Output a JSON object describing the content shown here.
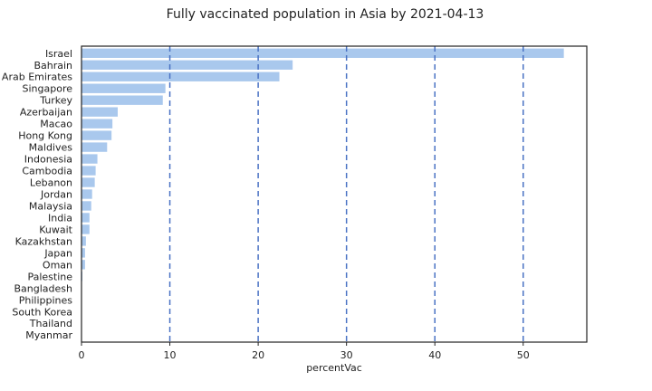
{
  "chart_data": {
    "type": "bar",
    "orientation": "horizontal",
    "title": "Fully vaccinated population in Asia by 2021-04-13",
    "xlabel": "percentVac",
    "ylabel": "",
    "xlim": [
      0,
      57.2
    ],
    "xticks": [
      0,
      10,
      20,
      30,
      40,
      50
    ],
    "grid": "vertical dashed lines at 10, 20, 30, 40, 50",
    "bar_color": "#a9c8ed",
    "grid_color": "#4a72c4",
    "categories": [
      "Israel",
      "Bahrain",
      "United Arab Emirates",
      "Singapore",
      "Turkey",
      "Azerbaijan",
      "Macao",
      "Hong Kong",
      "Maldives",
      "Indonesia",
      "Cambodia",
      "Lebanon",
      "Jordan",
      "Malaysia",
      "India",
      "Kuwait",
      "Kazakhstan",
      "Japan",
      "Oman",
      "Palestine",
      "Bangladesh",
      "Philippines",
      "South Korea",
      "Thailand",
      "Myanmar"
    ],
    "values": [
      54.6,
      23.9,
      22.4,
      9.5,
      9.2,
      4.1,
      3.5,
      3.4,
      2.9,
      1.8,
      1.6,
      1.5,
      1.2,
      1.1,
      0.9,
      0.9,
      0.5,
      0.4,
      0.4,
      0.1,
      0.05,
      0.05,
      0.05,
      0.02,
      0.01
    ]
  }
}
